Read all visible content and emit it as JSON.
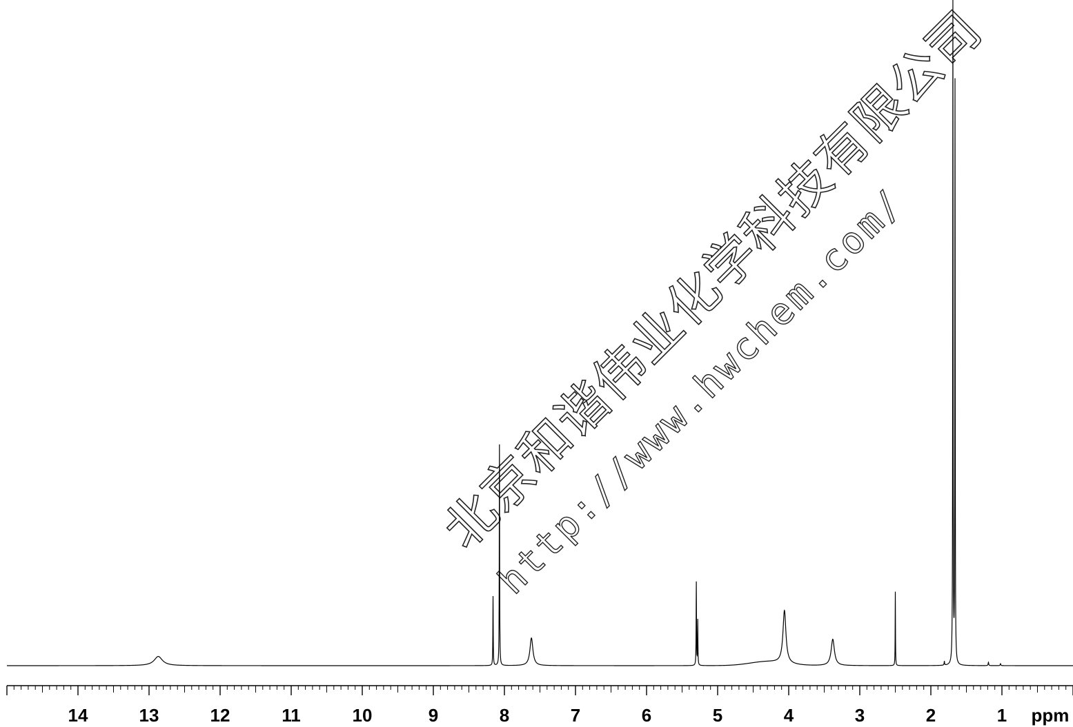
{
  "chart_data": {
    "type": "line",
    "title": "",
    "xlabel": "ppm",
    "ylabel": "",
    "x_axis": {
      "reversed": true,
      "xlim": [
        15.0,
        0.0
      ],
      "major_ticks": [
        14,
        13,
        12,
        11,
        10,
        9,
        8,
        7,
        6,
        5,
        4,
        3,
        2,
        1
      ],
      "minor_tick_step": 0.1,
      "unit": "ppm"
    },
    "ylim": [
      0,
      1.0
    ],
    "grid": false,
    "legend": "none",
    "series": [
      {
        "peaks": [
          {
            "shift": 12.87,
            "height": 0.014,
            "width": 0.14,
            "shape": "lorentzian"
          },
          {
            "shift": 8.16,
            "height": 0.105,
            "width": 0.006
          },
          {
            "shift": 8.07,
            "height": 0.335,
            "width": 0.006
          },
          {
            "shift": 7.62,
            "height": 0.042,
            "width": 0.05
          },
          {
            "shift": 5.3,
            "height": 0.126,
            "width": 0.006
          },
          {
            "shift": 5.28,
            "height": 0.068,
            "width": 0.006
          },
          {
            "shift": 4.06,
            "height": 0.08,
            "width": 0.05
          },
          {
            "shift": 3.38,
            "height": 0.04,
            "width": 0.055
          },
          {
            "shift": 2.5,
            "height": 0.112,
            "width": 0.005
          },
          {
            "shift": 1.69,
            "height": 1.0,
            "width": 0.006
          },
          {
            "shift": 1.66,
            "height": 0.88,
            "width": 0.006
          },
          {
            "shift": 1.81,
            "height": 0.006,
            "width": 0.008
          },
          {
            "shift": 1.19,
            "height": 0.005,
            "width": 0.01
          },
          {
            "shift": 1.02,
            "height": 0.003,
            "width": 0.01
          }
        ]
      }
    ]
  },
  "watermark": {
    "line1": "北京和谐伟业化学科技有限公司",
    "line2": "http://www.hwchem.com/"
  },
  "colors": {
    "trace": "#000000",
    "axis": "#000000",
    "background": "#ffffff",
    "watermark": "#222222"
  }
}
